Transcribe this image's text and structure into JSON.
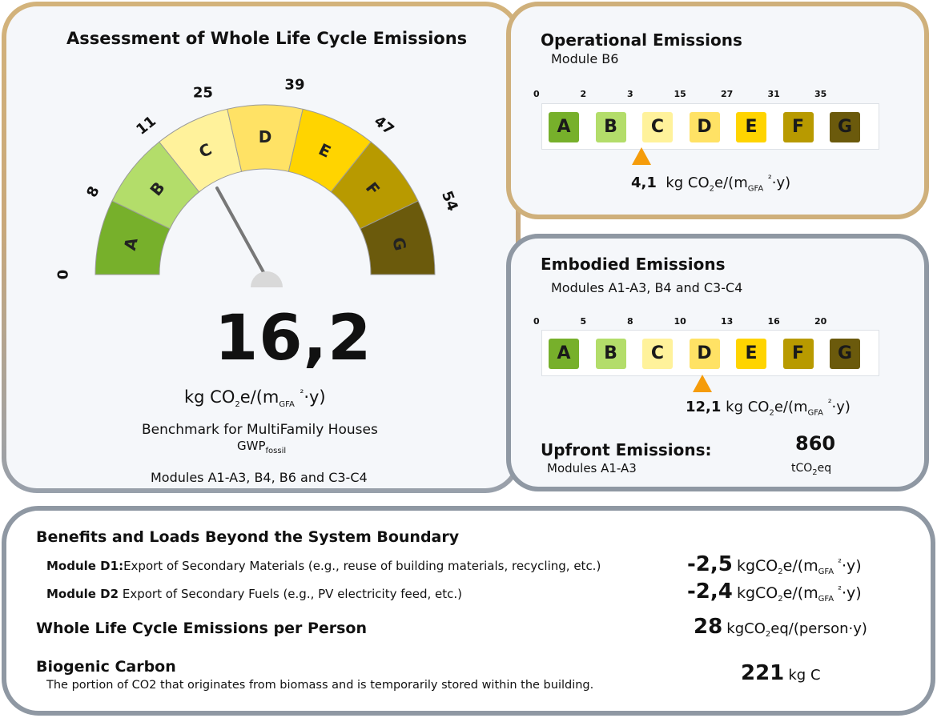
{
  "main": {
    "title": "Assessment of Whole Life Cycle Emissions",
    "gauge_ticks": [
      "0",
      "8",
      "11",
      "25",
      "39",
      "47",
      "54"
    ],
    "gauge_grades": [
      "A",
      "B",
      "C",
      "D",
      "E",
      "F",
      "G"
    ],
    "gauge_colors": [
      "#77b02b",
      "#b3dd6a",
      "#fff29b",
      "#ffe265",
      "#ffd400",
      "#b89a00",
      "#6b5a0c"
    ],
    "value": "16,2",
    "unit_kg": "kg CO",
    "unit_sub2": "2",
    "unit_mid": "e/(m",
    "unit_gfa": "GFA",
    "unit_sup": "²",
    "unit_end": "·y)",
    "benchmark": "Benchmark for MultiFamily Houses",
    "gwp": "GWP",
    "gwp_sub": "fossil",
    "modules": "Modules A1-A3, B4, B6 and C3-C4"
  },
  "operational": {
    "title": "Operational Emissions",
    "subtitle": "Module B6",
    "ticks": [
      "0",
      "2",
      "3",
      "15",
      "27",
      "31",
      "35"
    ],
    "grades": [
      "A",
      "B",
      "C",
      "D",
      "E",
      "F",
      "G"
    ],
    "colors": [
      "#77b02b",
      "#b3dd6a",
      "#fff29b",
      "#ffe265",
      "#ffd400",
      "#b89a00",
      "#6b5a0c"
    ],
    "value": "4,1",
    "unit": "kg CO",
    "unit_tail": "e/(m",
    "unit_end": "·y)"
  },
  "embodied": {
    "title": "Embodied Emissions",
    "subtitle": "Modules A1-A3, B4 and C3-C4",
    "ticks": [
      "0",
      "5",
      "8",
      "10",
      "13",
      "16",
      "20"
    ],
    "grades": [
      "A",
      "B",
      "C",
      "D",
      "E",
      "F",
      "G"
    ],
    "value": "12,1",
    "unit": "kg CO",
    "unit_tail": "e/(m",
    "unit_end": "·y)",
    "upfront_title": "Upfront Emissions:",
    "upfront_modules": "Modules A1-A3",
    "upfront_value": "860",
    "upfront_unit": "tCO",
    "upfront_unit_tail": "eq"
  },
  "bottom": {
    "benefits_title": "Benefits and Loads Beyond the System Boundary",
    "d1_label": "Module D1:",
    "d1_text": "Export of Secondary Materials (e.g., reuse of building materials, recycling, etc.)",
    "d1_value": "-2,5",
    "d2_label": "Module D2",
    "d2_text": "Export of Secondary Fuels (e.g., PV electricity feed, etc.)",
    "d2_value": "-2,4",
    "unit_kg": "kgCO",
    "unit_mid": "e/(m",
    "unit_gfa": "GFA",
    "unit_end": "·y)",
    "person_title": "Whole Life Cycle Emissions per Person",
    "person_value": "28",
    "person_unit": "kgCO",
    "person_unit_tail": "eq/(person·y)",
    "biogenic_title": "Biogenic Carbon",
    "biogenic_text": "The portion of CO2 that originates from biomass and is temporarily stored within the building.",
    "biogenic_value": "221",
    "biogenic_unit": "kg C"
  }
}
